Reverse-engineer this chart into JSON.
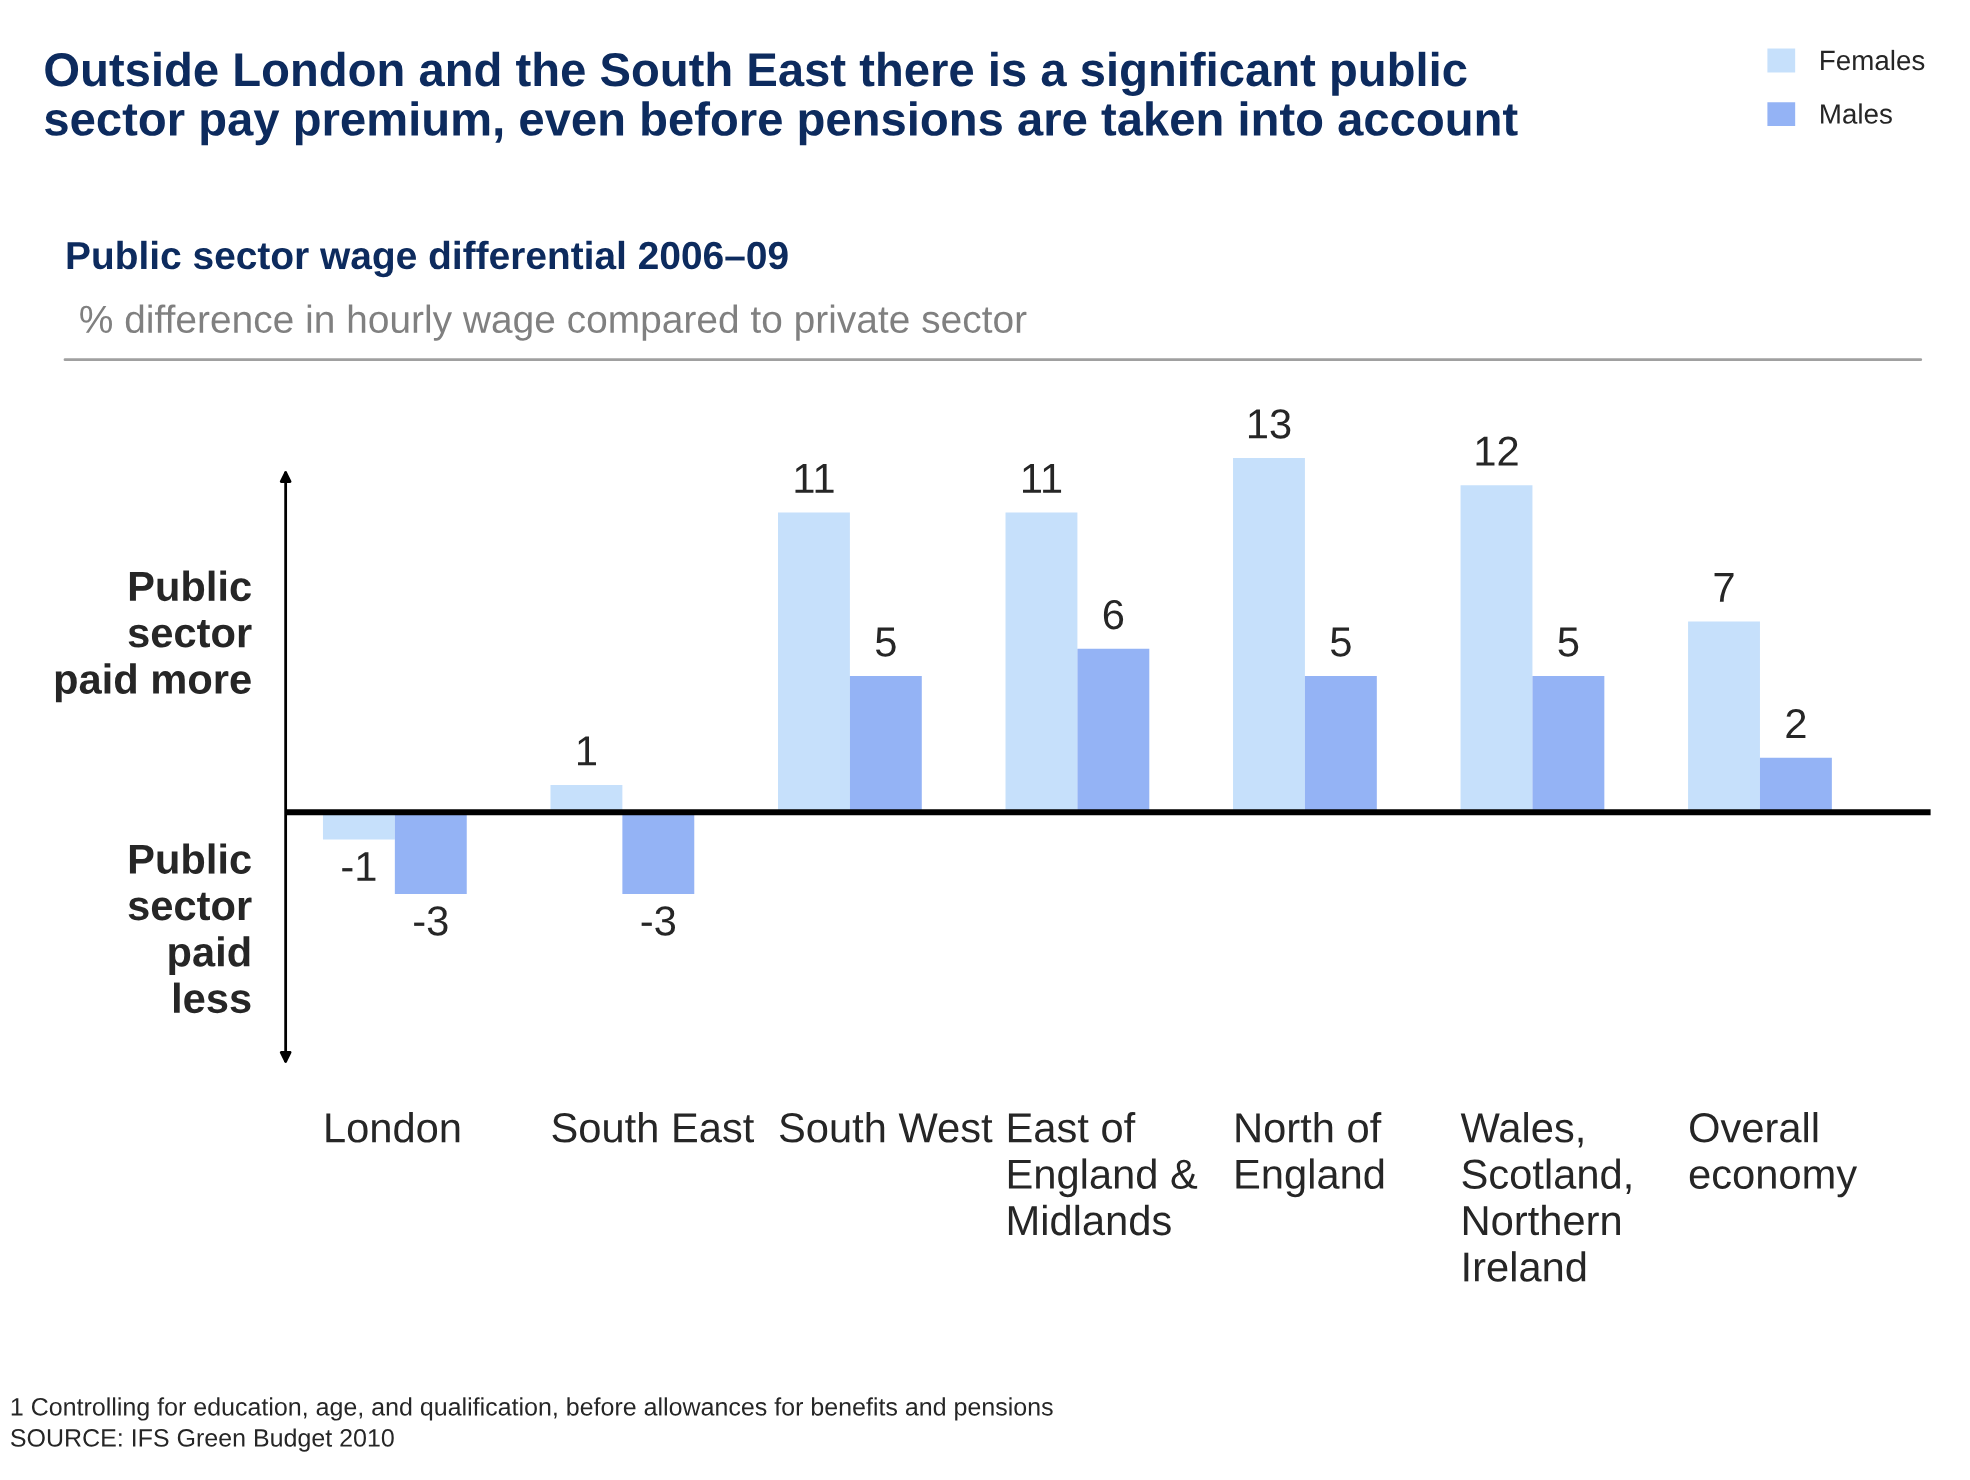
{
  "chart_data": {
    "type": "bar",
    "title": "Outside London and the South East there is a significant public sector pay premium, even before pensions are taken into account",
    "subtitle": "Public sector wage differential 2006–09",
    "ylabel": "% difference in hourly wage compared to private sector",
    "categories": [
      "London",
      "South East",
      "South West",
      "East of England & Midlands",
      "North of England",
      "Wales, Scotland, Northern Ireland",
      "Overall economy"
    ],
    "series": [
      {
        "name": "Females",
        "color": "#c6e0fb",
        "values": [
          -1,
          1,
          11,
          11,
          13,
          12,
          7
        ]
      },
      {
        "name": "Males",
        "color": "#94b3f5",
        "values": [
          -3,
          -3,
          5,
          6,
          5,
          5,
          2
        ]
      }
    ],
    "tick_labels": "x",
    "data_labels": true,
    "legend": "top right",
    "annotations": [
      "Public sector paid more",
      "Public sector paid less",
      "1 Controlling for education, age, and qualification, before allowances for benefits and pensions",
      "SOURCE: IFS Green Budget 2010"
    ]
  }
}
